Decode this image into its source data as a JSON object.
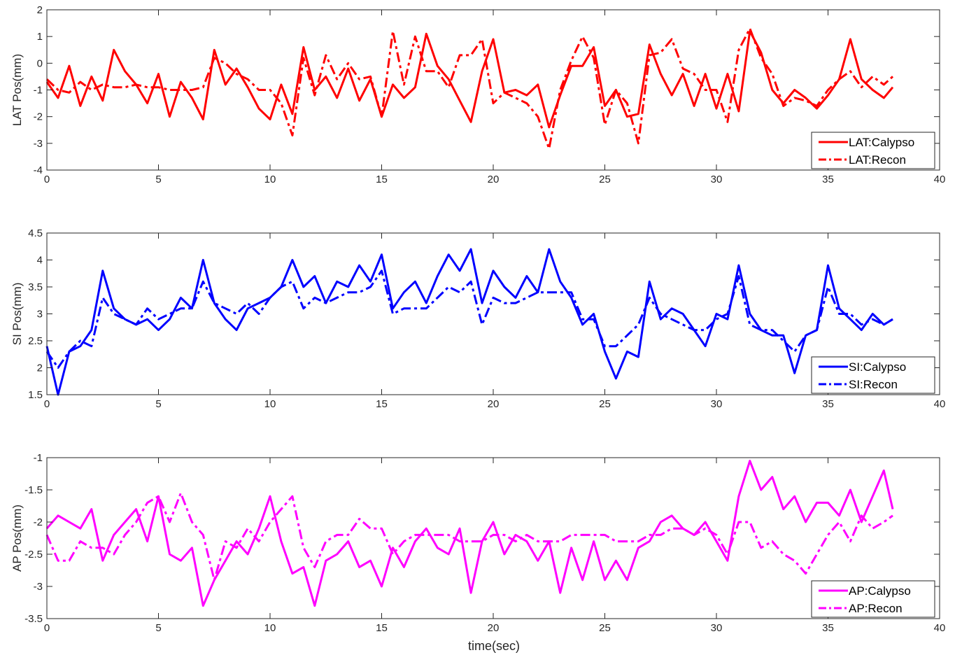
{
  "figure": {
    "xlabel": "time(sec)"
  },
  "chart_data": [
    {
      "type": "line",
      "ylabel": "LAT Pos(mm)",
      "xlim": [
        0,
        40
      ],
      "ylim": [
        -4,
        2
      ],
      "xticks": [
        0,
        5,
        10,
        15,
        20,
        25,
        30,
        35,
        40
      ],
      "yticks": [
        2,
        1,
        0,
        -1,
        -2,
        -3,
        -4
      ],
      "grid": false,
      "legend": "bottom-right",
      "series": [
        {
          "name": "LAT:Calypso",
          "color": "#ff0000",
          "style": "solid",
          "x": [
            0,
            0.5,
            1,
            1.5,
            2,
            2.5,
            3,
            3.5,
            4,
            4.5,
            5,
            5.5,
            6,
            6.5,
            7,
            7.5,
            8,
            8.5,
            9,
            9.5,
            10,
            10.5,
            11,
            11.5,
            12,
            12.5,
            13,
            13.5,
            14,
            14.5,
            15,
            15.5,
            16,
            16.5,
            17,
            17.5,
            18,
            18.5,
            19,
            19.5,
            20,
            20.5,
            21,
            21.5,
            22,
            22.5,
            23,
            23.5,
            24,
            24.5,
            25,
            25.5,
            26,
            26.5,
            27,
            27.5,
            28,
            28.5,
            29,
            29.5,
            30,
            30.5,
            31,
            31.5,
            32,
            32.5,
            33,
            33.5,
            34,
            34.5,
            35,
            35.5,
            36,
            36.5,
            37,
            37.5,
            37.9
          ],
          "y": [
            -0.7,
            -1.3,
            -0.1,
            -1.6,
            -0.5,
            -1.4,
            0.5,
            -0.3,
            -0.8,
            -1.5,
            -0.4,
            -2.0,
            -0.7,
            -1.3,
            -2.1,
            0.5,
            -0.8,
            -0.2,
            -0.9,
            -1.7,
            -2.1,
            -0.8,
            -1.9,
            0.6,
            -1.0,
            -0.5,
            -1.3,
            -0.2,
            -1.4,
            -0.6,
            -2.0,
            -0.8,
            -1.3,
            -0.9,
            1.1,
            -0.1,
            -0.6,
            -1.4,
            -2.2,
            -0.3,
            0.9,
            -1.1,
            -1.0,
            -1.2,
            -0.8,
            -2.4,
            -1.2,
            -0.1,
            -0.1,
            0.6,
            -1.6,
            -1.0,
            -2.0,
            -1.9,
            0.7,
            -0.4,
            -1.2,
            -0.4,
            -1.6,
            -0.4,
            -1.7,
            -0.4,
            -1.8,
            1.2,
            0.4,
            -1.0,
            -1.5,
            -1.0,
            -1.3,
            -1.7,
            -1.2,
            -0.6,
            0.9,
            -0.6,
            -1.0,
            -1.3,
            -0.9
          ]
        },
        {
          "name": "LAT:Recon",
          "color": "#ff0000",
          "style": "dashdot",
          "x": [
            0,
            0.5,
            1,
            1.5,
            2,
            2.5,
            3,
            3.5,
            4,
            4.5,
            5,
            5.5,
            6,
            6.5,
            7,
            7.5,
            8,
            8.5,
            9,
            9.5,
            10,
            10.5,
            11,
            11.5,
            12,
            12.5,
            13,
            13.5,
            14,
            14.5,
            15,
            15.5,
            16,
            16.5,
            17,
            17.5,
            18,
            18.5,
            19,
            19.5,
            20,
            20.5,
            21,
            21.5,
            22,
            22.5,
            23,
            23.5,
            24,
            24.5,
            25,
            25.5,
            26,
            26.5,
            27,
            27.5,
            28,
            28.5,
            29,
            29.5,
            30,
            30.5,
            31,
            31.5,
            32,
            32.5,
            33,
            33.5,
            34,
            34.5,
            35,
            35.5,
            36,
            36.5,
            37,
            37.5,
            37.9
          ],
          "y": [
            -0.6,
            -1.0,
            -1.1,
            -0.7,
            -1.0,
            -0.8,
            -0.9,
            -0.9,
            -0.8,
            -0.9,
            -0.9,
            -1.0,
            -1.0,
            -1.0,
            -0.9,
            0.2,
            0.0,
            -0.4,
            -0.6,
            -1.0,
            -1.0,
            -1.5,
            -2.7,
            0.2,
            -1.2,
            0.3,
            -0.6,
            0.0,
            -0.6,
            -0.5,
            -2.0,
            1.2,
            -0.8,
            1.0,
            -0.3,
            -0.3,
            -0.9,
            0.3,
            0.3,
            0.9,
            -1.5,
            -1.1,
            -1.3,
            -1.5,
            -2.0,
            -3.2,
            -1.0,
            0.1,
            1.0,
            0.2,
            -2.3,
            -1.0,
            -1.5,
            -3.0,
            0.3,
            0.4,
            0.9,
            -0.2,
            -0.4,
            -1.0,
            -1.0,
            -2.2,
            0.5,
            1.3,
            0.2,
            -0.4,
            -1.6,
            -1.3,
            -1.4,
            -1.6,
            -1.0,
            -0.6,
            -0.3,
            -0.9,
            -0.5,
            -0.8,
            -0.5
          ]
        }
      ]
    },
    {
      "type": "line",
      "ylabel": "SI Pos(mm)",
      "xlim": [
        0,
        40
      ],
      "ylim": [
        1.5,
        4.5
      ],
      "xticks": [
        0,
        5,
        10,
        15,
        20,
        25,
        30,
        35,
        40
      ],
      "yticks": [
        4.5,
        4,
        3.5,
        3,
        2.5,
        2,
        1.5
      ],
      "grid": false,
      "legend": "bottom-right",
      "series": [
        {
          "name": "SI:Calypso",
          "color": "#0000ff",
          "style": "solid",
          "x": [
            0,
            0.5,
            1,
            1.5,
            2,
            2.5,
            3,
            3.5,
            4,
            4.5,
            5,
            5.5,
            6,
            6.5,
            7,
            7.5,
            8,
            8.5,
            9,
            9.5,
            10,
            10.5,
            11,
            11.5,
            12,
            12.5,
            13,
            13.5,
            14,
            14.5,
            15,
            15.5,
            16,
            16.5,
            17,
            17.5,
            18,
            18.5,
            19,
            19.5,
            20,
            20.5,
            21,
            21.5,
            22,
            22.5,
            23,
            23.5,
            24,
            24.5,
            25,
            25.5,
            26,
            26.5,
            27,
            27.5,
            28,
            28.5,
            29,
            29.5,
            30,
            30.5,
            31,
            31.5,
            32,
            32.5,
            33,
            33.5,
            34,
            34.5,
            35,
            35.5,
            36,
            36.5,
            37,
            37.5,
            37.9
          ],
          "y": [
            2.4,
            1.5,
            2.3,
            2.4,
            2.7,
            3.8,
            3.1,
            2.9,
            2.8,
            2.9,
            2.7,
            2.9,
            3.3,
            3.1,
            4.0,
            3.2,
            2.9,
            2.7,
            3.1,
            3.2,
            3.3,
            3.5,
            4.0,
            3.5,
            3.7,
            3.2,
            3.6,
            3.5,
            3.9,
            3.6,
            4.1,
            3.1,
            3.4,
            3.6,
            3.2,
            3.7,
            4.1,
            3.8,
            4.2,
            3.2,
            3.8,
            3.5,
            3.3,
            3.7,
            3.4,
            4.2,
            3.6,
            3.3,
            2.8,
            3.0,
            2.3,
            1.8,
            2.3,
            2.2,
            3.6,
            2.9,
            3.1,
            3.0,
            2.7,
            2.4,
            3.0,
            2.9,
            3.9,
            3.0,
            2.7,
            2.6,
            2.6,
            1.9,
            2.6,
            2.7,
            3.9,
            3.1,
            2.9,
            2.7,
            3.0,
            2.8,
            2.9
          ]
        },
        {
          "name": "SI:Recon",
          "color": "#0000ff",
          "style": "dashdot",
          "x": [
            0,
            0.5,
            1,
            1.5,
            2,
            2.5,
            3,
            3.5,
            4,
            4.5,
            5,
            5.5,
            6,
            6.5,
            7,
            7.5,
            8,
            8.5,
            9,
            9.5,
            10,
            10.5,
            11,
            11.5,
            12,
            12.5,
            13,
            13.5,
            14,
            14.5,
            15,
            15.5,
            16,
            16.5,
            17,
            17.5,
            18,
            18.5,
            19,
            19.5,
            20,
            20.5,
            21,
            21.5,
            22,
            22.5,
            23,
            23.5,
            24,
            24.5,
            25,
            25.5,
            26,
            26.5,
            27,
            27.5,
            28,
            28.5,
            29,
            29.5,
            30,
            30.5,
            31,
            31.5,
            32,
            32.5,
            33,
            33.5,
            34,
            34.5,
            35,
            35.5,
            36,
            36.5,
            37,
            37.5,
            37.9
          ],
          "y": [
            2.3,
            2.0,
            2.3,
            2.5,
            2.4,
            3.3,
            3.0,
            2.9,
            2.8,
            3.1,
            2.9,
            3.0,
            3.1,
            3.1,
            3.6,
            3.2,
            3.1,
            3.0,
            3.2,
            3.0,
            3.3,
            3.5,
            3.6,
            3.1,
            3.3,
            3.2,
            3.3,
            3.4,
            3.4,
            3.5,
            3.8,
            3.0,
            3.1,
            3.1,
            3.1,
            3.3,
            3.5,
            3.4,
            3.6,
            2.8,
            3.3,
            3.2,
            3.2,
            3.3,
            3.4,
            3.4,
            3.4,
            3.4,
            2.9,
            2.9,
            2.4,
            2.4,
            2.6,
            2.8,
            3.3,
            3.0,
            2.9,
            2.8,
            2.7,
            2.7,
            2.9,
            3.0,
            3.7,
            2.8,
            2.7,
            2.7,
            2.5,
            2.3,
            2.6,
            2.7,
            3.5,
            3.0,
            3.0,
            2.8,
            2.9,
            2.8,
            2.9
          ]
        }
      ]
    },
    {
      "type": "line",
      "ylabel": "AP Pos(mm)",
      "xlim": [
        0,
        40
      ],
      "ylim": [
        -3.5,
        -1
      ],
      "xticks": [
        0,
        5,
        10,
        15,
        20,
        25,
        30,
        35,
        40
      ],
      "yticks": [
        -1,
        -1.5,
        -2,
        -2.5,
        -3,
        -3.5
      ],
      "grid": false,
      "legend": "bottom-right",
      "series": [
        {
          "name": "AP:Calypso",
          "color": "#ff00ff",
          "style": "solid",
          "x": [
            0,
            0.5,
            1,
            1.5,
            2,
            2.5,
            3,
            3.5,
            4,
            4.5,
            5,
            5.5,
            6,
            6.5,
            7,
            7.5,
            8,
            8.5,
            9,
            9.5,
            10,
            10.5,
            11,
            11.5,
            12,
            12.5,
            13,
            13.5,
            14,
            14.5,
            15,
            15.5,
            16,
            16.5,
            17,
            17.5,
            18,
            18.5,
            19,
            19.5,
            20,
            20.5,
            21,
            21.5,
            22,
            22.5,
            23,
            23.5,
            24,
            24.5,
            25,
            25.5,
            26,
            26.5,
            27,
            27.5,
            28,
            28.5,
            29,
            29.5,
            30,
            30.5,
            31,
            31.5,
            32,
            32.5,
            33,
            33.5,
            34,
            34.5,
            35,
            35.5,
            36,
            36.5,
            37,
            37.5,
            37.9
          ],
          "y": [
            -2.1,
            -1.9,
            -2.0,
            -2.1,
            -1.8,
            -2.6,
            -2.2,
            -2.0,
            -1.8,
            -2.3,
            -1.6,
            -2.5,
            -2.6,
            -2.4,
            -3.3,
            -2.9,
            -2.6,
            -2.3,
            -2.5,
            -2.1,
            -1.6,
            -2.3,
            -2.8,
            -2.7,
            -3.3,
            -2.6,
            -2.5,
            -2.3,
            -2.7,
            -2.6,
            -3.0,
            -2.4,
            -2.7,
            -2.3,
            -2.1,
            -2.4,
            -2.5,
            -2.1,
            -3.1,
            -2.3,
            -2.0,
            -2.5,
            -2.2,
            -2.3,
            -2.6,
            -2.3,
            -3.1,
            -2.4,
            -2.9,
            -2.3,
            -2.9,
            -2.6,
            -2.9,
            -2.4,
            -2.3,
            -2.0,
            -1.9,
            -2.1,
            -2.2,
            -2.0,
            -2.3,
            -2.6,
            -1.6,
            -1.05,
            -1.5,
            -1.3,
            -1.8,
            -1.6,
            -2.0,
            -1.7,
            -1.7,
            -1.9,
            -1.5,
            -2.0,
            -1.6,
            -1.2,
            -1.8
          ]
        },
        {
          "name": "AP:Recon",
          "color": "#ff00ff",
          "style": "dashdot",
          "x": [
            0,
            0.5,
            1,
            1.5,
            2,
            2.5,
            3,
            3.5,
            4,
            4.5,
            5,
            5.5,
            6,
            6.5,
            7,
            7.5,
            8,
            8.5,
            9,
            9.5,
            10,
            10.5,
            11,
            11.5,
            12,
            12.5,
            13,
            13.5,
            14,
            14.5,
            15,
            15.5,
            16,
            16.5,
            17,
            17.5,
            18,
            18.5,
            19,
            19.5,
            20,
            20.5,
            21,
            21.5,
            22,
            22.5,
            23,
            23.5,
            24,
            24.5,
            25,
            25.5,
            26,
            26.5,
            27,
            27.5,
            28,
            28.5,
            29,
            29.5,
            30,
            30.5,
            31,
            31.5,
            32,
            32.5,
            33,
            33.5,
            34,
            34.5,
            35,
            35.5,
            36,
            36.5,
            37,
            37.5,
            37.9
          ],
          "y": [
            -2.2,
            -2.6,
            -2.6,
            -2.3,
            -2.4,
            -2.4,
            -2.5,
            -2.2,
            -2.0,
            -1.7,
            -1.6,
            -2.0,
            -1.55,
            -2.0,
            -2.2,
            -2.9,
            -2.3,
            -2.4,
            -2.1,
            -2.3,
            -2.0,
            -1.8,
            -1.6,
            -2.4,
            -2.7,
            -2.3,
            -2.2,
            -2.2,
            -1.95,
            -2.1,
            -2.1,
            -2.5,
            -2.3,
            -2.2,
            -2.2,
            -2.2,
            -2.2,
            -2.3,
            -2.3,
            -2.3,
            -2.2,
            -2.2,
            -2.3,
            -2.2,
            -2.3,
            -2.3,
            -2.3,
            -2.2,
            -2.2,
            -2.2,
            -2.2,
            -2.3,
            -2.3,
            -2.3,
            -2.2,
            -2.2,
            -2.1,
            -2.1,
            -2.2,
            -2.1,
            -2.2,
            -2.5,
            -2.0,
            -2.0,
            -2.4,
            -2.3,
            -2.5,
            -2.6,
            -2.8,
            -2.5,
            -2.2,
            -2.0,
            -2.3,
            -1.9,
            -2.1,
            -2.0,
            -1.9
          ]
        }
      ]
    }
  ]
}
